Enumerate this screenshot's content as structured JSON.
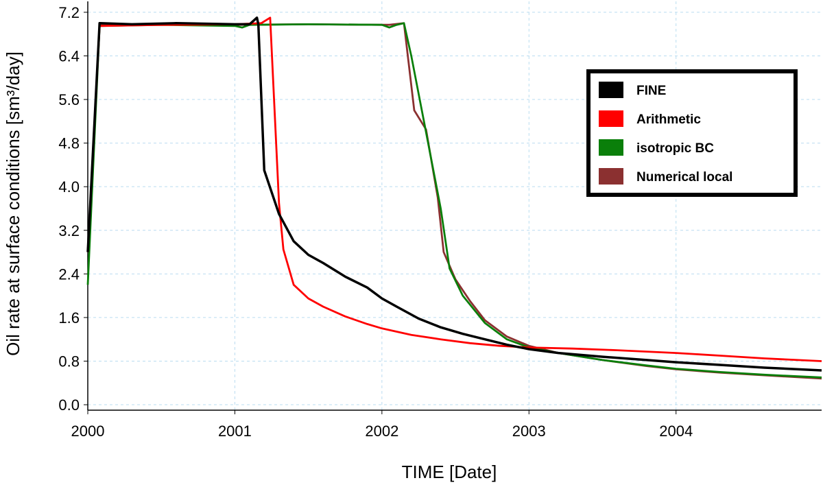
{
  "chart_data": {
    "type": "line",
    "xlabel": "TIME [Date]",
    "ylabel": "Oil rate at surface conditions [sm³/day]",
    "x_ticks": [
      "2000",
      "2001",
      "2002",
      "2003",
      "2004"
    ],
    "y_ticks": [
      "0.0",
      "0.8",
      "1.6",
      "2.4",
      "3.2",
      "4.0",
      "4.8",
      "5.6",
      "6.4",
      "7.2"
    ],
    "xlim": [
      2000.0,
      2004.99
    ],
    "ylim": [
      -0.1,
      7.4
    ],
    "grid": true,
    "legend_position": "top-right",
    "series": [
      {
        "name": "FINE",
        "color": "#000000",
        "points": [
          [
            2000.0,
            2.8
          ],
          [
            2000.08,
            7.0
          ],
          [
            2000.3,
            6.98
          ],
          [
            2000.6,
            7.0
          ],
          [
            2001.0,
            6.98
          ],
          [
            2001.1,
            6.98
          ],
          [
            2001.15,
            7.1
          ],
          [
            2001.16,
            6.98
          ],
          [
            2001.2,
            4.3
          ],
          [
            2001.3,
            3.5
          ],
          [
            2001.4,
            3.0
          ],
          [
            2001.5,
            2.75
          ],
          [
            2001.6,
            2.6
          ],
          [
            2001.75,
            2.35
          ],
          [
            2001.9,
            2.15
          ],
          [
            2002.0,
            1.95
          ],
          [
            2002.1,
            1.8
          ],
          [
            2002.25,
            1.58
          ],
          [
            2002.4,
            1.42
          ],
          [
            2002.55,
            1.3
          ],
          [
            2002.7,
            1.2
          ],
          [
            2002.85,
            1.1
          ],
          [
            2003.0,
            1.02
          ],
          [
            2003.2,
            0.95
          ],
          [
            2003.5,
            0.88
          ],
          [
            2003.8,
            0.82
          ],
          [
            2004.0,
            0.78
          ],
          [
            2004.3,
            0.73
          ],
          [
            2004.6,
            0.68
          ],
          [
            2004.99,
            0.63
          ]
        ]
      },
      {
        "name": "Arithmetic",
        "color": "#ff0000",
        "points": [
          [
            2000.0,
            2.8
          ],
          [
            2000.08,
            6.95
          ],
          [
            2000.5,
            6.97
          ],
          [
            2001.0,
            6.98
          ],
          [
            2001.18,
            7.0
          ],
          [
            2001.24,
            7.1
          ],
          [
            2001.3,
            3.7
          ],
          [
            2001.33,
            2.85
          ],
          [
            2001.4,
            2.2
          ],
          [
            2001.5,
            1.95
          ],
          [
            2001.6,
            1.8
          ],
          [
            2001.75,
            1.62
          ],
          [
            2001.9,
            1.48
          ],
          [
            2002.0,
            1.4
          ],
          [
            2002.2,
            1.28
          ],
          [
            2002.4,
            1.2
          ],
          [
            2002.6,
            1.13
          ],
          [
            2002.8,
            1.08
          ],
          [
            2003.0,
            1.05
          ],
          [
            2003.3,
            1.03
          ],
          [
            2003.6,
            1.0
          ],
          [
            2004.0,
            0.95
          ],
          [
            2004.3,
            0.9
          ],
          [
            2004.6,
            0.85
          ],
          [
            2004.99,
            0.8
          ]
        ]
      },
      {
        "name": "isotropic BC",
        "color": "#0a7f0a",
        "points": [
          [
            2000.0,
            2.2
          ],
          [
            2000.08,
            6.95
          ],
          [
            2000.5,
            6.97
          ],
          [
            2001.0,
            6.95
          ],
          [
            2001.05,
            6.92
          ],
          [
            2001.1,
            6.97
          ],
          [
            2001.5,
            6.98
          ],
          [
            2002.0,
            6.97
          ],
          [
            2002.05,
            6.92
          ],
          [
            2002.1,
            6.97
          ],
          [
            2002.15,
            7.0
          ],
          [
            2002.2,
            6.4
          ],
          [
            2002.3,
            5.0
          ],
          [
            2002.4,
            3.6
          ],
          [
            2002.46,
            2.5
          ],
          [
            2002.55,
            2.0
          ],
          [
            2002.7,
            1.5
          ],
          [
            2002.85,
            1.2
          ],
          [
            2003.0,
            1.05
          ],
          [
            2003.2,
            0.95
          ],
          [
            2003.5,
            0.82
          ],
          [
            2003.8,
            0.72
          ],
          [
            2004.0,
            0.66
          ],
          [
            2004.3,
            0.6
          ],
          [
            2004.6,
            0.55
          ],
          [
            2004.99,
            0.5
          ]
        ]
      },
      {
        "name": "Numerical local",
        "color": "#8b3030",
        "points": [
          [
            2000.0,
            2.8
          ],
          [
            2000.08,
            6.98
          ],
          [
            2000.5,
            6.97
          ],
          [
            2001.0,
            6.97
          ],
          [
            2001.5,
            6.98
          ],
          [
            2002.0,
            6.97
          ],
          [
            2002.05,
            6.97
          ],
          [
            2002.15,
            7.0
          ],
          [
            2002.22,
            5.4
          ],
          [
            2002.3,
            5.05
          ],
          [
            2002.38,
            3.8
          ],
          [
            2002.42,
            2.8
          ],
          [
            2002.5,
            2.3
          ],
          [
            2002.6,
            1.9
          ],
          [
            2002.7,
            1.55
          ],
          [
            2002.85,
            1.25
          ],
          [
            2003.0,
            1.08
          ],
          [
            2003.2,
            0.95
          ],
          [
            2003.5,
            0.82
          ],
          [
            2003.8,
            0.71
          ],
          [
            2004.0,
            0.65
          ],
          [
            2004.3,
            0.59
          ],
          [
            2004.6,
            0.54
          ],
          [
            2004.99,
            0.48
          ]
        ]
      }
    ]
  }
}
